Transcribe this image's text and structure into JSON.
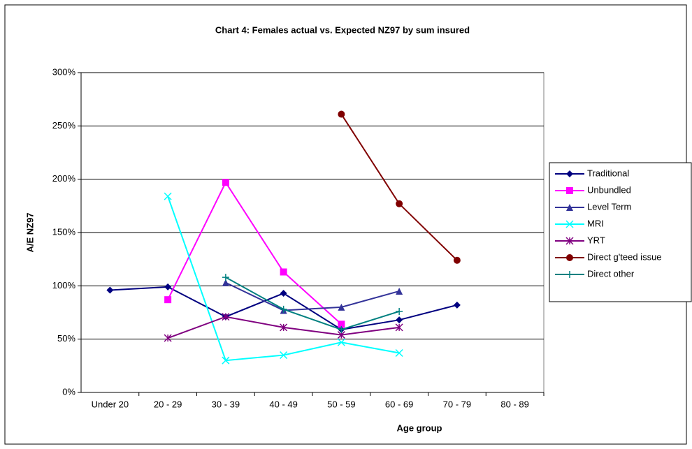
{
  "chart_data": {
    "type": "line",
    "title": "Chart 4: Females actual vs. Expected NZ97 by sum insured",
    "x_label": "Age group",
    "y_label": "A/E NZ97",
    "categories": [
      "Under 20",
      "20 - 29",
      "30 - 39",
      "40 - 49",
      "50 - 59",
      "60 - 69",
      "70 - 79",
      "80 - 89"
    ],
    "ylim": [
      0,
      300
    ],
    "yticks": [
      {
        "value": 0,
        "label": "0%"
      },
      {
        "value": 50,
        "label": "50%"
      },
      {
        "value": 100,
        "label": "100%"
      },
      {
        "value": 150,
        "label": "150%"
      },
      {
        "value": 200,
        "label": "200%"
      },
      {
        "value": 250,
        "label": "250%"
      },
      {
        "value": 300,
        "label": "300%"
      }
    ],
    "grid": true,
    "legend": "right",
    "series": [
      {
        "name": "Traditional",
        "color": "#000080",
        "marker": "diamond",
        "values": [
          96,
          99,
          71,
          93,
          59,
          68,
          82,
          null
        ]
      },
      {
        "name": "Unbundled",
        "color": "#ff00ff",
        "marker": "square",
        "values": [
          null,
          87,
          197,
          113,
          64,
          null,
          null,
          null
        ]
      },
      {
        "name": "Level Term",
        "color": "#333399",
        "marker": "triangle",
        "values": [
          null,
          null,
          103,
          77,
          80,
          95,
          null,
          null
        ]
      },
      {
        "name": "MRI",
        "color": "#00ffff",
        "marker": "x",
        "values": [
          null,
          184,
          30,
          35,
          47,
          37,
          null,
          null
        ]
      },
      {
        "name": "YRT",
        "color": "#800080",
        "marker": "star",
        "values": [
          null,
          51,
          71,
          61,
          54,
          61,
          null,
          null
        ]
      },
      {
        "name": "Direct g'teed issue",
        "color": "#800000",
        "marker": "circle",
        "values": [
          null,
          null,
          null,
          null,
          261,
          177,
          124,
          null
        ]
      },
      {
        "name": "Direct other",
        "color": "#008080",
        "marker": "plus",
        "values": [
          null,
          null,
          108,
          78,
          59,
          76,
          null,
          null
        ]
      }
    ]
  }
}
